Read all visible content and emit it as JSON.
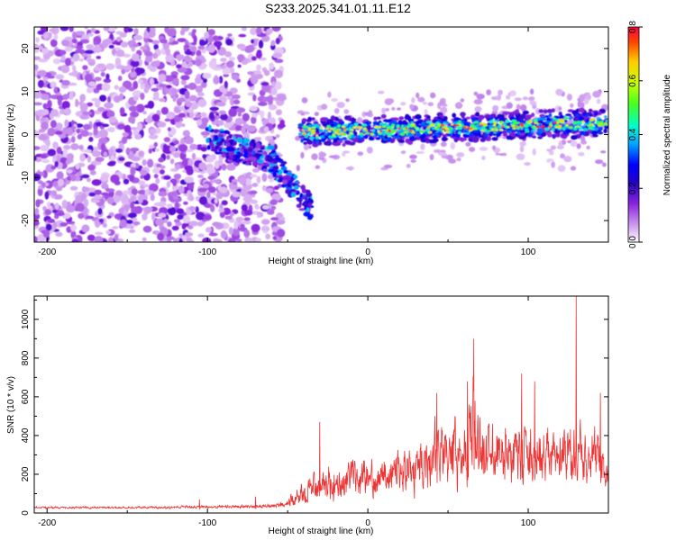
{
  "title": "S233.2025.341.01.11.E12",
  "chart_data": [
    {
      "type": "heatmap",
      "title": "S233.2025.341.01.11.E12",
      "xlabel": "Height of straight line (km)",
      "ylabel": "Frequency (Hz)",
      "xlim": [
        -208,
        150
      ],
      "ylim": [
        -25,
        25
      ],
      "xticks": [
        -200,
        -100,
        0,
        100
      ],
      "yticks": [
        -20,
        -10,
        0,
        10,
        20
      ],
      "colorbar": {
        "label": "Normalized spectral amplitude",
        "range": [
          0,
          0.8
        ],
        "ticks": [
          "0.0",
          "0.2",
          "0.4",
          "0.6",
          "0.8"
        ],
        "colors": [
          "#ffffff",
          "#cc99ee",
          "#8822dd",
          "#2200cc",
          "#0000ff",
          "#00aaff",
          "#00ffcc",
          "#44ff22",
          "#ccff00",
          "#ffcc00",
          "#ff4400",
          "#ff0044"
        ]
      },
      "description_of_pattern": {
        "noise_region_km": [
          -208,
          -55
        ],
        "signal_band_frequency_hz": [
          -2,
          4
        ],
        "signal_onset_km": -40,
        "descending_branch_km": [
          -100,
          -35
        ],
        "descending_branch_frequency_hz": [
          0,
          -18
        ]
      }
    },
    {
      "type": "line",
      "xlabel": "Height of straight line (km)",
      "ylabel": "SNR (10 * v/v)",
      "xlim": [
        -208,
        150
      ],
      "ylim": [
        0,
        1120
      ],
      "xticks": [
        -200,
        -100,
        0,
        100
      ],
      "yticks": [
        0,
        200,
        400,
        600,
        800,
        1000
      ],
      "series": [
        {
          "name": "SNR",
          "color": "#ee3333",
          "envelope_x": [
            -208,
            -150,
            -80,
            -60,
            -50,
            -40,
            -30,
            -20,
            -10,
            0,
            10,
            20,
            30,
            40,
            50,
            60,
            66,
            70,
            80,
            90,
            100,
            110,
            120,
            128,
            130,
            135,
            140,
            145,
            150
          ],
          "envelope_mean": [
            28,
            28,
            32,
            35,
            50,
            100,
            150,
            165,
            170,
            180,
            200,
            220,
            250,
            300,
            320,
            330,
            380,
            330,
            320,
            310,
            300,
            290,
            280,
            310,
            300,
            290,
            280,
            260,
            150
          ],
          "envelope_amp": [
            10,
            10,
            15,
            20,
            40,
            120,
            160,
            170,
            160,
            160,
            170,
            200,
            240,
            290,
            300,
            300,
            500,
            300,
            290,
            280,
            270,
            260,
            250,
            300,
            260,
            250,
            240,
            250,
            150
          ],
          "spikes": [
            {
              "x": -105,
              "y": 70
            },
            {
              "x": -70,
              "y": 85
            },
            {
              "x": -30,
              "y": 470
            },
            {
              "x": 43,
              "y": 620
            },
            {
              "x": 62,
              "y": 680
            },
            {
              "x": 66,
              "y": 900
            },
            {
              "x": 96,
              "y": 720
            },
            {
              "x": 104,
              "y": 680
            },
            {
              "x": 130,
              "y": 1120
            },
            {
              "x": 145,
              "y": 620
            }
          ]
        }
      ]
    }
  ]
}
